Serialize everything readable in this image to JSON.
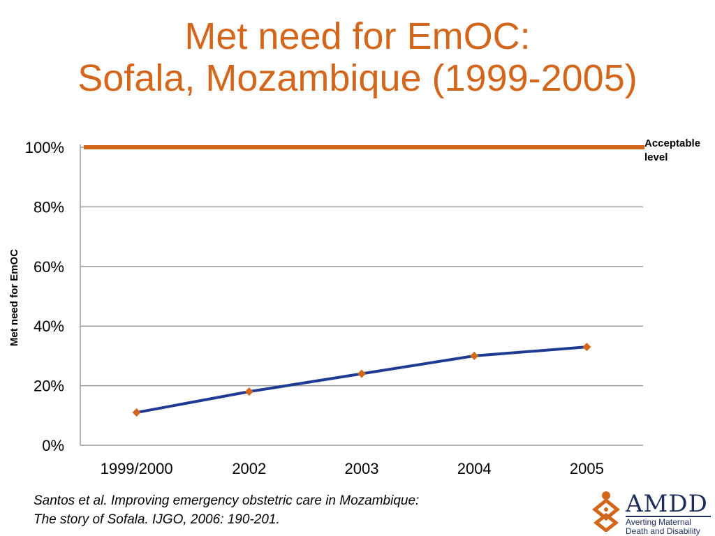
{
  "title": {
    "line1": "Met need for EmOC:",
    "line2": "Sofala, Mozambique (1999-2005)"
  },
  "chart_data": {
    "type": "line",
    "categories": [
      "1999/2000",
      "2002",
      "2003",
      "2004",
      "2005"
    ],
    "series": [
      {
        "values": [
          11,
          18,
          24,
          30,
          33
        ],
        "color": "#1F3A93",
        "marker_color": "#D4661C",
        "marker": "diamond"
      }
    ],
    "reference_line": {
      "value": 100,
      "label_line1": "Acceptable",
      "label_line2": "level",
      "color": "#D4661C"
    },
    "ylabel": "Met need for EmOC",
    "ylim": [
      0,
      100
    ],
    "yticks": [
      0,
      20,
      40,
      60,
      80,
      100
    ],
    "ytick_labels": [
      "0%",
      "20%",
      "40%",
      "60%",
      "80%",
      "100%"
    ],
    "grid": true,
    "legend": "none"
  },
  "citation": {
    "line1": "Santos et al. Improving emergency obstetric care in Mozambique:",
    "line2": "The story of Sofala.  IJGO, 2006: 190-201."
  },
  "logo": {
    "word": "AMDD",
    "sub1": "Averting Maternal",
    "sub2": "Death and Disability",
    "icon": "amdd-figure-icon"
  },
  "colors": {
    "accent": "#D4661C",
    "series": "#1F3A93",
    "grid": "#999999",
    "logo": "#1E2E5C"
  }
}
